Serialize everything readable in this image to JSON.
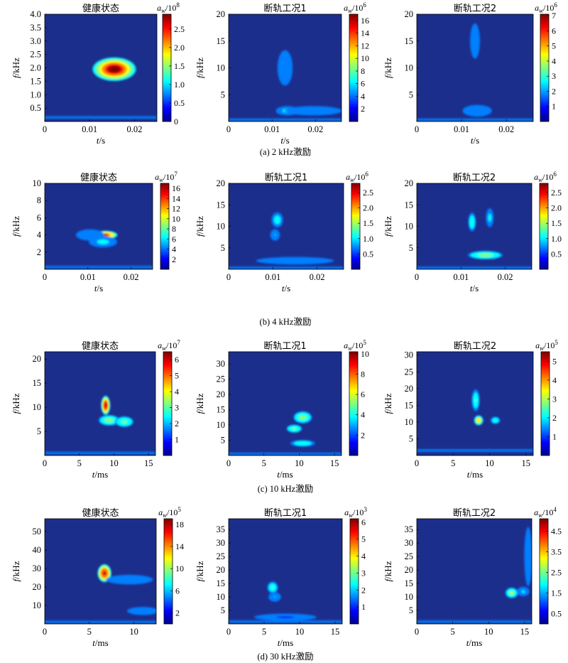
{
  "figure": {
    "rows": [
      {
        "caption": "(a) 2 kHz激励"
      },
      {
        "caption": "(b) 4 kHz激励"
      },
      {
        "caption": "(c) 10 kHz激励"
      },
      {
        "caption": "(d) 30 kHz激励"
      }
    ],
    "colorbar_symbol": "a",
    "colorbar_subscript": "w",
    "colormap": [
      "#00008f",
      "#0000ff",
      "#007fff",
      "#00ffff",
      "#7fff7f",
      "#ffff00",
      "#ff7f00",
      "#ff0000",
      "#7f0000"
    ],
    "background_color": "#1c2e8c"
  },
  "chart_data": [
    {
      "id": "a1",
      "type": "heatmap",
      "title": "健康状态",
      "xlabel_var": "t",
      "xlabel_unit": "/s",
      "ylabel_var": "f",
      "ylabel_unit": "/kHz",
      "xlim": [
        0,
        0.025
      ],
      "ylim": [
        0,
        4.0
      ],
      "xticks": [
        "0",
        "0.01",
        "0.02"
      ],
      "xtick_vals": [
        0,
        0.01,
        0.02
      ],
      "yticks": [
        "0.5",
        "1.0",
        "1.5",
        "2.0",
        "2.5",
        "3.0",
        "3.5",
        "4.0"
      ],
      "ytick_vals": [
        0.5,
        1.0,
        1.5,
        2.0,
        2.5,
        3.0,
        3.5,
        4.0
      ],
      "colorbar": {
        "exp": "8",
        "ticks": [
          "0",
          "0.5",
          "1.0",
          "1.5",
          "2.0",
          "2.5"
        ],
        "tick_vals": [
          0,
          0.5,
          1.0,
          1.5,
          2.0,
          2.5
        ],
        "max": 2.9
      },
      "hotspots": [
        {
          "x": 0.0155,
          "y": 1.95,
          "sx": 0.0022,
          "sy": 0.2,
          "v": 2.9
        }
      ],
      "bands": [
        {
          "y": 0.15,
          "v": 0.25
        }
      ]
    },
    {
      "id": "a2",
      "type": "heatmap",
      "title": "断轨工况1",
      "xlabel_var": "t",
      "xlabel_unit": "/s",
      "ylabel_var": "f",
      "ylabel_unit": "/kHz",
      "xlim": [
        0,
        0.026
      ],
      "ylim": [
        0,
        20
      ],
      "xticks": [
        "0",
        "0.01",
        "0.02"
      ],
      "xtick_vals": [
        0,
        0.01,
        0.02
      ],
      "yticks": [
        "5",
        "10",
        "15",
        "20"
      ],
      "ytick_vals": [
        5,
        10,
        15,
        20
      ],
      "colorbar": {
        "exp": "6",
        "ticks": [
          "2",
          "4",
          "6",
          "8",
          "10",
          "12",
          "14",
          "16"
        ],
        "tick_vals": [
          2,
          4,
          6,
          8,
          10,
          12,
          14,
          16
        ],
        "max": 17
      },
      "hotspots": [
        {
          "x": 0.0135,
          "y": 2.0,
          "sx": 0.0012,
          "sy": 0.4,
          "v": 5
        },
        {
          "x": 0.0195,
          "y": 2.0,
          "sx": 0.003,
          "sy": 0.4,
          "v": 4
        },
        {
          "x": 0.013,
          "y": 10,
          "sx": 0.0008,
          "sy": 1.5,
          "v": 3
        }
      ],
      "bands": [
        {
          "y": 0.3,
          "v": 1.5
        }
      ]
    },
    {
      "id": "a3",
      "type": "heatmap",
      "title": "断轨工况2",
      "xlabel_var": "t",
      "xlabel_unit": "/s",
      "ylabel_var": "f",
      "ylabel_unit": "/kHz",
      "xlim": [
        0,
        0.026
      ],
      "ylim": [
        0,
        20
      ],
      "xticks": [
        "0",
        "0.01",
        "0.02"
      ],
      "xtick_vals": [
        0,
        0.01,
        0.02
      ],
      "yticks": [
        "5",
        "10",
        "15",
        "20"
      ],
      "ytick_vals": [
        5,
        10,
        15,
        20
      ],
      "colorbar": {
        "exp": "6",
        "ticks": [
          "1",
          "2",
          "3",
          "4",
          "5",
          "6",
          "7"
        ],
        "tick_vals": [
          1,
          2,
          3,
          4,
          5,
          6,
          7
        ],
        "max": 7.1
      },
      "hotspots": [
        {
          "x": 0.013,
          "y": 15,
          "sx": 0.0005,
          "sy": 1.5,
          "v": 1.5
        },
        {
          "x": 0.0135,
          "y": 2,
          "sx": 0.0015,
          "sy": 0.5,
          "v": 1.2
        }
      ],
      "bands": [
        {
          "y": 0.3,
          "v": 0.5
        }
      ]
    },
    {
      "id": "b1",
      "type": "heatmap",
      "title": "健康状态",
      "xlabel_var": "t",
      "xlabel_unit": "/s",
      "ylabel_var": "f",
      "ylabel_unit": "/kHz",
      "xlim": [
        0,
        0.025
      ],
      "ylim": [
        0,
        10
      ],
      "xticks": [
        "0",
        "0.01",
        "0.02"
      ],
      "xtick_vals": [
        0,
        0.01,
        0.02
      ],
      "yticks": [
        "2",
        "4",
        "6",
        "8",
        "10"
      ],
      "ytick_vals": [
        2,
        4,
        6,
        8,
        10
      ],
      "colorbar": {
        "exp": "7",
        "ticks": [
          "2",
          "4",
          "6",
          "8",
          "10",
          "12",
          "14",
          "16"
        ],
        "tick_vals": [
          2,
          4,
          6,
          8,
          10,
          12,
          14,
          16
        ],
        "max": 17
      },
      "hotspots": [
        {
          "x": 0.014,
          "y": 4.0,
          "sx": 0.0013,
          "sy": 0.22,
          "v": 16
        },
        {
          "x": 0.0135,
          "y": 3.2,
          "sx": 0.0015,
          "sy": 0.3,
          "v": 5
        },
        {
          "x": 0.0105,
          "y": 4.0,
          "sx": 0.0015,
          "sy": 0.3,
          "v": 4
        }
      ],
      "bands": [
        {
          "y": 0.25,
          "v": 1.5
        }
      ]
    },
    {
      "id": "b2",
      "type": "heatmap",
      "title": "断轨工况1",
      "xlabel_var": "t",
      "xlabel_unit": "/s",
      "ylabel_var": "f",
      "ylabel_unit": "/kHz",
      "xlim": [
        0,
        0.026
      ],
      "ylim": [
        0,
        20
      ],
      "xticks": [
        "0",
        "0.01",
        "0.02"
      ],
      "xtick_vals": [
        0,
        0.01,
        0.02
      ],
      "yticks": [
        "5",
        "10",
        "15",
        "20"
      ],
      "ytick_vals": [
        5,
        10,
        15,
        20
      ],
      "colorbar": {
        "exp": "6",
        "ticks": [
          "0.5",
          "1.0",
          "1.5",
          "2.0",
          "2.5"
        ],
        "tick_vals": [
          0.5,
          1.0,
          1.5,
          2.0,
          2.5
        ],
        "max": 2.8
      },
      "hotspots": [
        {
          "x": 0.011,
          "y": 11.5,
          "sx": 0.0006,
          "sy": 0.8,
          "v": 0.9
        },
        {
          "x": 0.0105,
          "y": 8,
          "sx": 0.0005,
          "sy": 0.6,
          "v": 0.7
        },
        {
          "x": 0.015,
          "y": 2,
          "sx": 0.004,
          "sy": 0.4,
          "v": 0.5
        }
      ],
      "bands": [
        {
          "y": 0.3,
          "v": 0.3
        }
      ]
    },
    {
      "id": "b3",
      "type": "heatmap",
      "title": "断轨工况2",
      "xlabel_var": "t",
      "xlabel_unit": "/s",
      "ylabel_var": "f",
      "ylabel_unit": "/kHz",
      "xlim": [
        0,
        0.026
      ],
      "ylim": [
        0,
        20
      ],
      "xticks": [
        "0",
        "0.01",
        "0.02"
      ],
      "xtick_vals": [
        0,
        0.01,
        0.02
      ],
      "yticks": [
        "5",
        "10",
        "15",
        "20"
      ],
      "ytick_vals": [
        5,
        10,
        15,
        20
      ],
      "colorbar": {
        "exp": "6",
        "ticks": [
          "0.5",
          "1.0",
          "1.5",
          "2.0",
          "2.5"
        ],
        "tick_vals": [
          0.5,
          1.0,
          1.5,
          2.0,
          2.5
        ],
        "max": 2.8
      },
      "hotspots": [
        {
          "x": 0.0155,
          "y": 3.3,
          "sx": 0.0018,
          "sy": 0.45,
          "v": 1.3
        },
        {
          "x": 0.0125,
          "y": 11,
          "sx": 0.0004,
          "sy": 1.0,
          "v": 1.0
        },
        {
          "x": 0.0165,
          "y": 12,
          "sx": 0.0004,
          "sy": 1.0,
          "v": 0.8
        }
      ],
      "bands": [
        {
          "y": 0.3,
          "v": 0.25
        }
      ]
    },
    {
      "id": "c1",
      "type": "heatmap",
      "title": "健康状态",
      "xlabel_var": "t",
      "xlabel_unit": "/ms",
      "ylabel_var": "f",
      "ylabel_unit": "/kHz",
      "xlim": [
        0,
        16
      ],
      "ylim": [
        0,
        21.5
      ],
      "xticks": [
        "0",
        "5",
        "10",
        "15"
      ],
      "xtick_vals": [
        0,
        5,
        10,
        15
      ],
      "yticks": [
        "5",
        "10",
        "15",
        "20"
      ],
      "ytick_vals": [
        5,
        10,
        15,
        20
      ],
      "colorbar": {
        "exp": "7",
        "ticks": [
          "1",
          "2",
          "3",
          "4",
          "5",
          "6"
        ],
        "tick_vals": [
          1,
          2,
          3,
          4,
          5,
          6
        ],
        "max": 6.5
      },
      "hotspots": [
        {
          "x": 8.8,
          "y": 10.4,
          "sx": 0.3,
          "sy": 0.9,
          "v": 6.4
        },
        {
          "x": 9.3,
          "y": 7.3,
          "sx": 0.7,
          "sy": 0.5,
          "v": 3.2
        },
        {
          "x": 11.5,
          "y": 7,
          "sx": 0.6,
          "sy": 0.5,
          "v": 2.8
        }
      ],
      "bands": [
        {
          "y": 0.5,
          "v": 0.6
        }
      ]
    },
    {
      "id": "c2",
      "type": "heatmap",
      "title": "断轨工况1",
      "xlabel_var": "t",
      "xlabel_unit": "/ms",
      "ylabel_var": "f",
      "ylabel_unit": "/kHz",
      "xlim": [
        0,
        16
      ],
      "ylim": [
        0,
        34
      ],
      "xticks": [
        "0",
        "5",
        "10",
        "15"
      ],
      "xtick_vals": [
        0,
        5,
        10,
        15
      ],
      "yticks": [
        "5",
        "10",
        "15",
        "20",
        "25",
        "30"
      ],
      "ytick_vals": [
        5,
        10,
        15,
        20,
        25,
        30
      ],
      "colorbar": {
        "exp": "5",
        "ticks": [
          "2",
          "4",
          "6",
          "8",
          "10"
        ],
        "tick_vals": [
          2,
          4,
          6,
          8,
          10
        ],
        "max": 10.2
      },
      "hotspots": [
        {
          "x": 10.5,
          "y": 12.5,
          "sx": 0.6,
          "sy": 0.9,
          "v": 4.8
        },
        {
          "x": 9.3,
          "y": 8.8,
          "sx": 0.5,
          "sy": 0.6,
          "v": 4.5
        },
        {
          "x": 10.5,
          "y": 4,
          "sx": 0.8,
          "sy": 0.5,
          "v": 3.8
        }
      ],
      "bands": [
        {
          "y": 0.5,
          "v": 0.8
        }
      ]
    },
    {
      "id": "c3",
      "type": "heatmap",
      "title": "断轨工况2",
      "xlabel_var": "t",
      "xlabel_unit": "/ms",
      "ylabel_var": "f",
      "ylabel_unit": "/kHz",
      "xlim": [
        0,
        16
      ],
      "ylim": [
        0,
        31
      ],
      "xticks": [
        "0",
        "5",
        "10",
        "15"
      ],
      "xtick_vals": [
        0,
        5,
        10,
        15
      ],
      "yticks": [
        "5",
        "10",
        "15",
        "20",
        "25",
        "30"
      ],
      "ytick_vals": [
        5,
        10,
        15,
        20,
        25,
        30
      ],
      "colorbar": {
        "exp": "5",
        "ticks": [
          "1",
          "2",
          "3",
          "4",
          "5"
        ],
        "tick_vals": [
          1,
          2,
          3,
          4,
          5
        ],
        "max": 5.5
      },
      "hotspots": [
        {
          "x": 8.5,
          "y": 10.5,
          "sx": 0.3,
          "sy": 0.7,
          "v": 3.6
        },
        {
          "x": 8.1,
          "y": 16.5,
          "sx": 0.25,
          "sy": 1.5,
          "v": 2.2
        },
        {
          "x": 10.8,
          "y": 10.5,
          "sx": 0.3,
          "sy": 0.5,
          "v": 2.0
        }
      ],
      "bands": [
        {
          "y": 1.5,
          "v": 0.5
        }
      ]
    },
    {
      "id": "d1",
      "type": "heatmap",
      "title": "健康状态",
      "xlabel_var": "t",
      "xlabel_unit": "/ms",
      "ylabel_var": "f",
      "ylabel_unit": "/kHz",
      "xlim": [
        0,
        12.5
      ],
      "ylim": [
        0,
        57
      ],
      "xticks": [
        "0",
        "5",
        "10"
      ],
      "xtick_vals": [
        0,
        5,
        10
      ],
      "yticks": [
        "10",
        "20",
        "30",
        "40",
        "50"
      ],
      "ytick_vals": [
        10,
        20,
        30,
        40,
        50
      ],
      "colorbar": {
        "exp": "5",
        "ticks": [
          "2",
          "6",
          "10",
          "14",
          "18"
        ],
        "tick_vals": [
          2,
          6,
          10,
          14,
          18
        ],
        "max": 19
      },
      "hotspots": [
        {
          "x": 6.7,
          "y": 27.5,
          "sx": 0.35,
          "sy": 2.2,
          "v": 18.5
        },
        {
          "x": 9.5,
          "y": 24,
          "sx": 1.2,
          "sy": 1.2,
          "v": 3
        },
        {
          "x": 11,
          "y": 7,
          "sx": 0.8,
          "sy": 1.0,
          "v": 2.5
        }
      ],
      "bands": [
        {
          "y": 1.0,
          "v": 1.5
        }
      ]
    },
    {
      "id": "d2",
      "type": "heatmap",
      "title": "断轨工况1",
      "xlabel_var": "t",
      "xlabel_unit": "/ms",
      "ylabel_var": "f",
      "ylabel_unit": "/kHz",
      "xlim": [
        0,
        16
      ],
      "ylim": [
        0,
        39
      ],
      "xticks": [
        "0",
        "5",
        "10",
        "15"
      ],
      "xtick_vals": [
        0,
        5,
        10,
        15
      ],
      "yticks": [
        "5",
        "10",
        "15",
        "20",
        "25",
        "30",
        "35"
      ],
      "ytick_vals": [
        5,
        10,
        15,
        20,
        25,
        30,
        35
      ],
      "colorbar": {
        "exp": "3",
        "ticks": [
          "1",
          "2",
          "3",
          "4",
          "5",
          "6"
        ],
        "tick_vals": [
          1,
          2,
          3,
          4,
          5,
          6
        ],
        "max": 6.2
      },
      "hotspots": [
        {
          "x": 6.2,
          "y": 13.5,
          "sx": 0.35,
          "sy": 1.0,
          "v": 2.4
        },
        {
          "x": 6.5,
          "y": 10,
          "sx": 0.4,
          "sy": 0.8,
          "v": 1.6
        },
        {
          "x": 8,
          "y": 2.5,
          "sx": 2,
          "sy": 0.6,
          "v": 0.7
        }
      ],
      "bands": [
        {
          "y": 0.8,
          "v": 0.6
        }
      ]
    },
    {
      "id": "d3",
      "type": "heatmap",
      "title": "断轨工况2",
      "xlabel_var": "t",
      "xlabel_unit": "/ms",
      "ylabel_var": "f",
      "ylabel_unit": "/kHz",
      "xlim": [
        0,
        16
      ],
      "ylim": [
        0,
        39
      ],
      "xticks": [
        "0",
        "5",
        "10",
        "15"
      ],
      "xtick_vals": [
        0,
        5,
        10,
        15
      ],
      "yticks": [
        "5",
        "10",
        "15",
        "20",
        "25",
        "30",
        "35"
      ],
      "ytick_vals": [
        5,
        10,
        15,
        20,
        25,
        30,
        35
      ],
      "colorbar": {
        "exp": "4",
        "ticks": [
          "0.5",
          "1.5",
          "2.5",
          "3.5",
          "4.5"
        ],
        "tick_vals": [
          0.5,
          1.5,
          2.5,
          3.5,
          4.5
        ],
        "max": 5.1
      },
      "hotspots": [
        {
          "x": 13.2,
          "y": 11.5,
          "sx": 0.4,
          "sy": 0.9,
          "v": 2.6
        },
        {
          "x": 14.8,
          "y": 12,
          "sx": 0.4,
          "sy": 0.8,
          "v": 1.4
        },
        {
          "x": 15.5,
          "y": 25,
          "sx": 0.25,
          "sy": 5,
          "v": 0.8
        }
      ],
      "bands": [
        {
          "y": 0.8,
          "v": 0.4
        }
      ]
    }
  ]
}
